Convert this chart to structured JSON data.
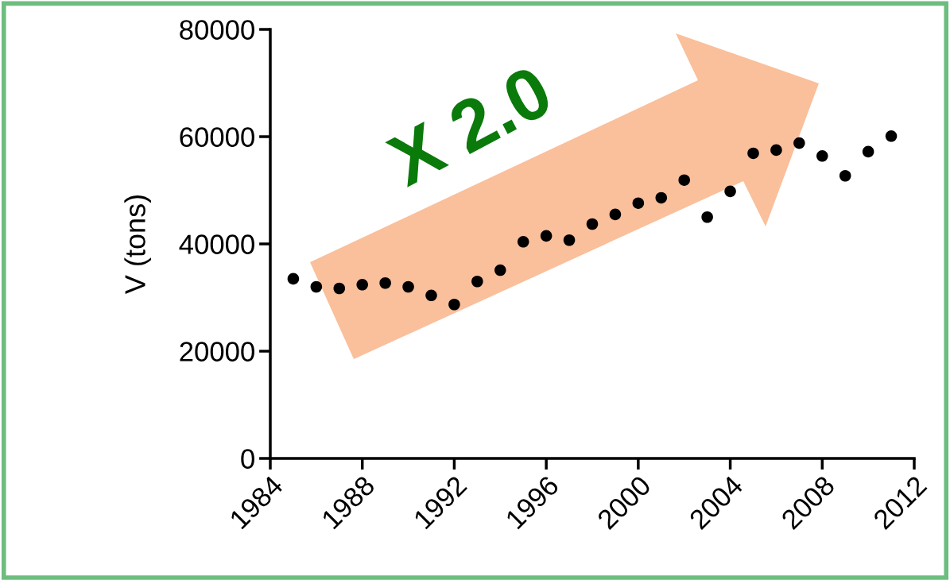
{
  "chart_data": {
    "type": "scatter",
    "ylabel": "V (tons)",
    "x": [
      1985,
      1986,
      1987,
      1988,
      1989,
      1990,
      1991,
      1992,
      1993,
      1994,
      1995,
      1996,
      1997,
      1998,
      1999,
      2000,
      2001,
      2002,
      2003,
      2004,
      2005,
      2006,
      2007,
      2008,
      2009,
      2010,
      2011
    ],
    "values": [
      33500,
      32000,
      31700,
      32400,
      32700,
      32000,
      30400,
      28700,
      33000,
      35100,
      40400,
      41500,
      40700,
      43700,
      45500,
      47600,
      48600,
      51900,
      45000,
      49800,
      56900,
      57500,
      58800,
      56400,
      52700,
      57200,
      60100
    ],
    "color": "#000000",
    "marker": "circle",
    "xlim": [
      1984,
      2012
    ],
    "xticks": [
      1984,
      1988,
      1992,
      1996,
      2000,
      2004,
      2008,
      2012
    ],
    "ylim": [
      0,
      80000
    ],
    "yticks": [
      0,
      20000,
      40000,
      60000,
      80000
    ],
    "grid": false,
    "annotations": [
      "X 2.0"
    ]
  }
}
